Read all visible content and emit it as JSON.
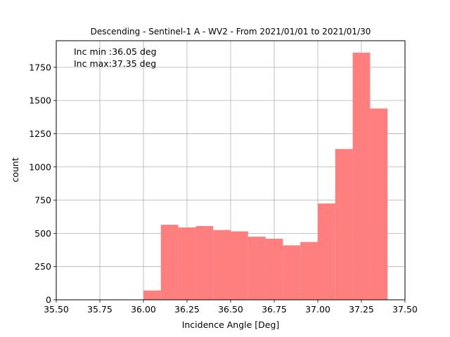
{
  "chart_data": {
    "type": "bar",
    "title": "Descending - Sentinel-1 A - WV2 - From 2021/01/01 to 2021/01/30",
    "xlabel": "Incidence Angle [Deg]",
    "ylabel": "count",
    "xlim": [
      35.5,
      37.5
    ],
    "ylim": [
      0,
      1950
    ],
    "xticks": [
      "35.50",
      "35.75",
      "36.00",
      "36.25",
      "36.50",
      "36.75",
      "37.00",
      "37.25",
      "37.50"
    ],
    "yticks": [
      "0",
      "250",
      "500",
      "750",
      "1000",
      "1250",
      "1500",
      "1750"
    ],
    "grid": true,
    "bar_color": "#ff7f7f",
    "annotations": [
      "Inc min :36.05 deg",
      "Inc max:37.35 deg"
    ],
    "bins": [
      {
        "x0": 36.0,
        "x1": 36.1,
        "count": 70
      },
      {
        "x0": 36.1,
        "x1": 36.2,
        "count": 565
      },
      {
        "x0": 36.2,
        "x1": 36.3,
        "count": 545
      },
      {
        "x0": 36.3,
        "x1": 36.4,
        "count": 555
      },
      {
        "x0": 36.4,
        "x1": 36.5,
        "count": 525
      },
      {
        "x0": 36.5,
        "x1": 36.6,
        "count": 515
      },
      {
        "x0": 36.6,
        "x1": 36.7,
        "count": 475
      },
      {
        "x0": 36.7,
        "x1": 36.8,
        "count": 460
      },
      {
        "x0": 36.8,
        "x1": 36.9,
        "count": 410
      },
      {
        "x0": 36.9,
        "x1": 37.0,
        "count": 435
      },
      {
        "x0": 37.0,
        "x1": 37.1,
        "count": 725
      },
      {
        "x0": 37.1,
        "x1": 37.2,
        "count": 1135
      },
      {
        "x0": 37.2,
        "x1": 37.3,
        "count": 1860
      },
      {
        "x0": 37.3,
        "x1": 37.4,
        "count": 1440
      }
    ]
  }
}
